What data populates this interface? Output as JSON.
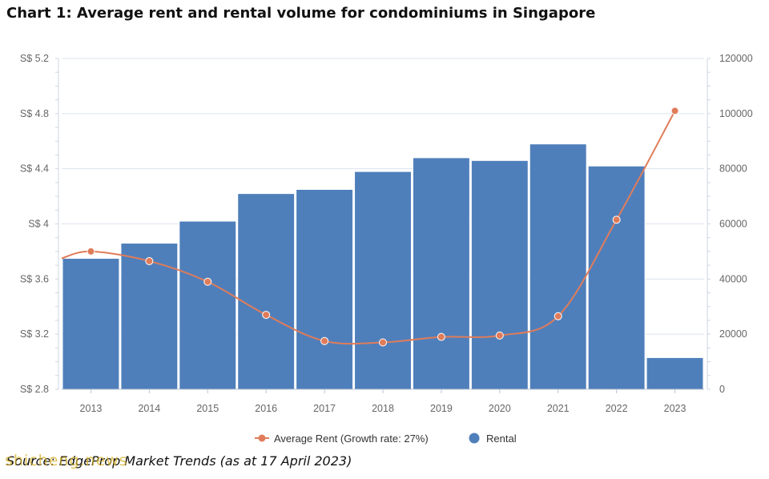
{
  "title": "Chart 1: Average rent and rental volume for condominiums in Singapore",
  "source": "Source: EdgeProp Market Trends (as at 17 April 2023)",
  "watermark": "shicheng.news",
  "colors": {
    "bar": "#4f7fbb",
    "line": "#e07c5a",
    "grid": "#dde3ee"
  },
  "chart_data": {
    "type": "bar",
    "categories": [
      "2013",
      "2014",
      "2015",
      "2016",
      "2017",
      "2018",
      "2019",
      "2020",
      "2021",
      "2022",
      "2023"
    ],
    "series": [
      {
        "name": "Rental",
        "type": "bar",
        "axis": "right",
        "values": [
          47500,
          53000,
          61000,
          71000,
          72500,
          79000,
          84000,
          83000,
          89000,
          81000,
          11500
        ],
        "color": "#4f7fbb"
      },
      {
        "name": "Average Rent (Growth rate: 27%)",
        "type": "line",
        "axis": "left",
        "values": [
          3.75,
          3.8,
          3.73,
          3.58,
          3.34,
          3.15,
          3.14,
          3.18,
          3.19,
          3.33,
          4.03,
          4.82
        ],
        "x": [
          2012.5,
          2013,
          2014,
          2015,
          2016,
          2017,
          2018,
          2019,
          2020,
          2021,
          2022,
          2023
        ],
        "color": "#e07c5a"
      }
    ],
    "y_left": {
      "ticks": [
        "S$ 5.2",
        "S$ 4.8",
        "S$ 4.4",
        "S$ 4",
        "S$ 3.6",
        "S$ 3.2",
        "S$ 2.8"
      ],
      "ylim": [
        2.8,
        5.2
      ]
    },
    "y_right": {
      "ticks": [
        "120000",
        "100000",
        "80000",
        "60000",
        "40000",
        "20000",
        "0"
      ],
      "ylim": [
        0,
        120000
      ]
    },
    "legend": {
      "placement": "bottom",
      "items": [
        "Average Rent (Growth rate: 27%)",
        "Rental"
      ]
    },
    "grid": true
  }
}
